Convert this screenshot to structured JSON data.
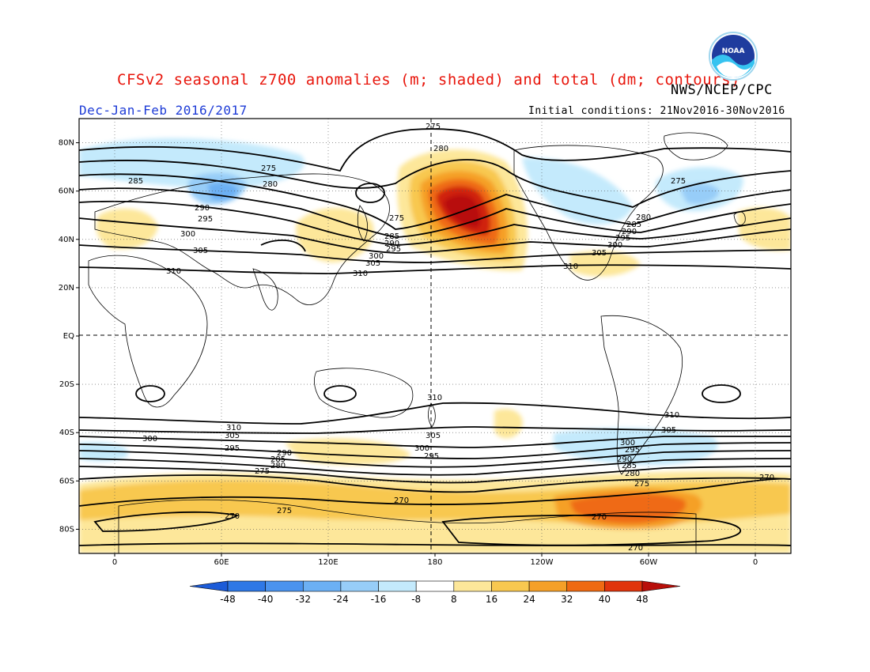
{
  "header": {
    "title": "CFSv2 seasonal z700 anomalies (m; shaded) and total (dm; contours)",
    "agency": "NWS/NCEP/CPC",
    "period": "Dec-Jan-Feb 2016/2017",
    "initial_conditions": "Initial conditions: 21Nov2016-30Nov2016",
    "logo_text": "NOAA"
  },
  "map": {
    "lat_labels": [
      "80N",
      "60N",
      "40N",
      "20N",
      "EQ",
      "20S",
      "40S",
      "60S",
      "80S"
    ],
    "lat_values": [
      80,
      60,
      40,
      20,
      0,
      -20,
      -40,
      -60,
      -80
    ],
    "lon_labels": [
      "0",
      "60E",
      "120E",
      "180",
      "120W",
      "60W",
      "0"
    ],
    "lon_values": [
      0,
      60,
      120,
      180,
      240,
      300,
      360
    ],
    "lon_range": [
      -20,
      380
    ],
    "lat_range": [
      -90,
      90
    ]
  },
  "contour_labels": [
    "275",
    "280",
    "285",
    "290",
    "295",
    "300",
    "305",
    "310",
    "270"
  ],
  "colorbar": {
    "ticks": [
      "-48",
      "-40",
      "-32",
      "-24",
      "-16",
      "-8",
      "8",
      "16",
      "24",
      "32",
      "40",
      "48"
    ],
    "colors": [
      "#1c5bd8",
      "#2f78e6",
      "#4b93ee",
      "#6cb0f4",
      "#97cdf8",
      "#c4eafc",
      "#ffffff",
      "#fde79a",
      "#f8c850",
      "#f5a028",
      "#ef6a12",
      "#e0340c",
      "#b80f0a"
    ]
  },
  "anomaly_colors": {
    "pos1": "#fde79a",
    "pos2": "#f8c850",
    "pos3": "#f5a028",
    "pos4": "#ef6a12",
    "pos5": "#d0200c",
    "pos6": "#b80f0a",
    "neg1": "#c4eafc",
    "neg2": "#97cdf8",
    "neg3": "#6cb0f4",
    "neg4": "#4b93ee"
  }
}
